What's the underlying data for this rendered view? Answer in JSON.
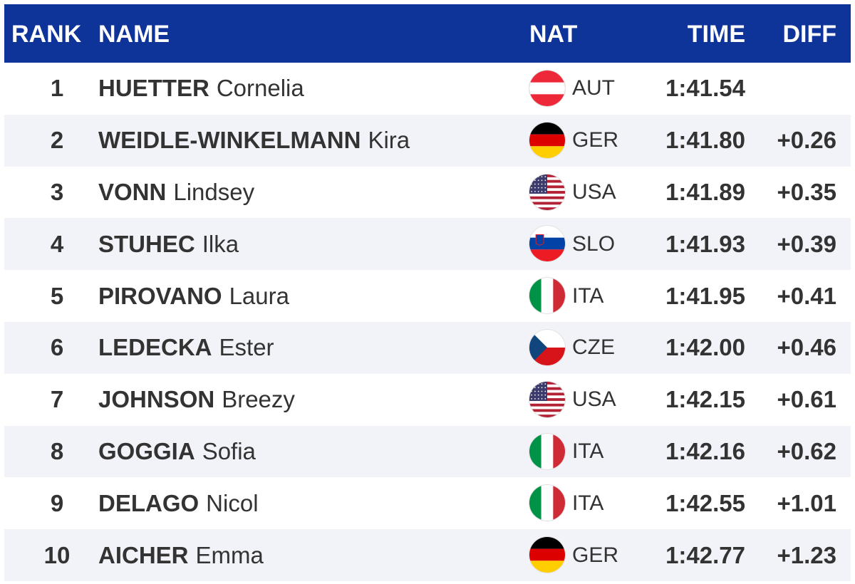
{
  "header": {
    "rank": "RANK",
    "name": "NAME",
    "nat": "NAT",
    "time": "TIME",
    "diff": "DIFF"
  },
  "rows": [
    {
      "rank": "1",
      "last": "HUETTER",
      "first": "Cornelia",
      "nat": "AUT",
      "flag": "aut",
      "time": "1:41.54",
      "diff": ""
    },
    {
      "rank": "2",
      "last": "WEIDLE-WINKELMANN",
      "first": "Kira",
      "nat": "GER",
      "flag": "ger",
      "time": "1:41.80",
      "diff": "+0.26"
    },
    {
      "rank": "3",
      "last": "VONN",
      "first": "Lindsey",
      "nat": "USA",
      "flag": "usa",
      "time": "1:41.89",
      "diff": "+0.35"
    },
    {
      "rank": "4",
      "last": "STUHEC",
      "first": "Ilka",
      "nat": "SLO",
      "flag": "slo",
      "time": "1:41.93",
      "diff": "+0.39"
    },
    {
      "rank": "5",
      "last": "PIROVANO",
      "first": "Laura",
      "nat": "ITA",
      "flag": "ita",
      "time": "1:41.95",
      "diff": "+0.41"
    },
    {
      "rank": "6",
      "last": "LEDECKA",
      "first": "Ester",
      "nat": "CZE",
      "flag": "cze",
      "time": "1:42.00",
      "diff": "+0.46"
    },
    {
      "rank": "7",
      "last": "JOHNSON",
      "first": "Breezy",
      "nat": "USA",
      "flag": "usa",
      "time": "1:42.15",
      "diff": "+0.61"
    },
    {
      "rank": "8",
      "last": "GOGGIA",
      "first": "Sofia",
      "nat": "ITA",
      "flag": "ita",
      "time": "1:42.16",
      "diff": "+0.62"
    },
    {
      "rank": "9",
      "last": "DELAGO",
      "first": "Nicol",
      "nat": "ITA",
      "flag": "ita",
      "time": "1:42.55",
      "diff": "+1.01"
    },
    {
      "rank": "10",
      "last": "AICHER",
      "first": "Emma",
      "nat": "GER",
      "flag": "ger",
      "time": "1:42.77",
      "diff": "+1.23"
    }
  ],
  "colors": {
    "header_bg": "#0e3399",
    "row_alt": "#f2f3f8"
  }
}
